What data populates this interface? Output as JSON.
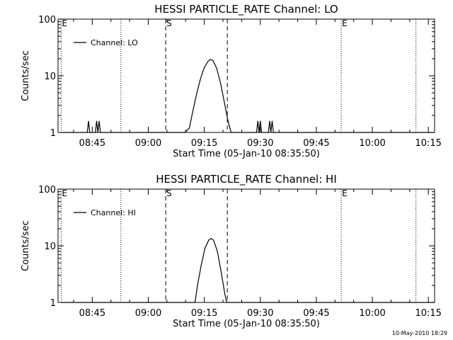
{
  "chart_data": [
    {
      "type": "line",
      "title": "HESSI PARTICLE_RATE Channel: LO",
      "xlabel": "Start Time (05-Jan-10 08:35:50)",
      "ylabel": "Counts/sec",
      "yscale": "log",
      "ylim": [
        1,
        100
      ],
      "y_ticks": [
        {
          "value": 1,
          "label": "1"
        },
        {
          "value": 10,
          "label": "10"
        },
        {
          "value": 100,
          "label": "100"
        }
      ],
      "x_ticks": [
        {
          "value": "08:45",
          "label": "08:45"
        },
        {
          "value": "09:00",
          "label": "09:00"
        },
        {
          "value": "09:15",
          "label": "09:15"
        },
        {
          "value": "09:30",
          "label": "09:30"
        },
        {
          "value": "09:45",
          "label": "09:45"
        },
        {
          "value": "10:00",
          "label": "10:00"
        },
        {
          "value": "10:15",
          "label": "10:15"
        }
      ],
      "xlim": [
        "08:35:50",
        "10:16:40"
      ],
      "series": [
        {
          "name": "Channel: LO",
          "points": [
            [
              "08:36:40",
              1.0
            ],
            [
              "08:43:40",
              1.0
            ],
            [
              "08:44:00",
              1.6
            ],
            [
              "08:44:20",
              1.0
            ],
            [
              "08:45:50",
              1.0
            ],
            [
              "08:46:10",
              1.6
            ],
            [
              "08:46:30",
              1.0
            ],
            [
              "08:46:50",
              1.6
            ],
            [
              "08:47:10",
              1.0
            ],
            [
              "09:09:50",
              1.0
            ],
            [
              "09:11:00",
              1.2
            ],
            [
              "09:12:00",
              2.5
            ],
            [
              "09:13:00",
              5.0
            ],
            [
              "09:14:00",
              9.0
            ],
            [
              "09:15:00",
              14.0
            ],
            [
              "09:16:00",
              18.0
            ],
            [
              "09:16:40",
              19.5
            ],
            [
              "09:17:20",
              18.5
            ],
            [
              "09:18:20",
              13.5
            ],
            [
              "09:19:20",
              7.5
            ],
            [
              "09:20:20",
              3.5
            ],
            [
              "09:21:20",
              1.6
            ],
            [
              "09:22:10",
              1.0
            ],
            [
              "09:29:00",
              1.0
            ],
            [
              "09:29:20",
              1.6
            ],
            [
              "09:29:40",
              1.0
            ],
            [
              "09:30:00",
              1.6
            ],
            [
              "09:30:20",
              1.0
            ],
            [
              "09:32:10",
              1.0
            ],
            [
              "09:32:30",
              1.6
            ],
            [
              "09:32:50",
              1.0
            ],
            [
              "09:33:10",
              1.6
            ],
            [
              "09:33:30",
              1.0
            ],
            [
              "10:16:40",
              1.0
            ]
          ]
        }
      ],
      "markers": [
        {
          "time": "08:36:40",
          "style": "dotted",
          "label": "E"
        },
        {
          "time": "08:52:40",
          "style": "dotted",
          "label": ""
        },
        {
          "time": "09:04:40",
          "style": "dashed",
          "label": "S"
        },
        {
          "time": "09:21:10",
          "style": "dashed",
          "label": ""
        },
        {
          "time": "09:51:40",
          "style": "dotted",
          "label": "E"
        },
        {
          "time": "10:11:40",
          "style": "dotted",
          "label": ""
        }
      ],
      "legend": {
        "label": "Channel: LO",
        "position": "top-left"
      }
    },
    {
      "type": "line",
      "title": "HESSI PARTICLE_RATE Channel: HI",
      "xlabel": "Start Time (05-Jan-10 08:35:50)",
      "ylabel": "Counts/sec",
      "yscale": "log",
      "ylim": [
        1,
        100
      ],
      "y_ticks": [
        {
          "value": 1,
          "label": "1"
        },
        {
          "value": 10,
          "label": "10"
        },
        {
          "value": 100,
          "label": "100"
        }
      ],
      "x_ticks": [
        {
          "value": "08:45",
          "label": "08:45"
        },
        {
          "value": "09:00",
          "label": "09:00"
        },
        {
          "value": "09:15",
          "label": "09:15"
        },
        {
          "value": "09:30",
          "label": "09:30"
        },
        {
          "value": "09:45",
          "label": "09:45"
        },
        {
          "value": "10:00",
          "label": "10:00"
        },
        {
          "value": "10:15",
          "label": "10:15"
        }
      ],
      "xlim": [
        "08:35:50",
        "10:16:40"
      ],
      "series": [
        {
          "name": "Channel: HI",
          "points": [
            [
              "08:36:40",
              1.0
            ],
            [
              "09:12:30",
              1.0
            ],
            [
              "09:13:10",
              2.0
            ],
            [
              "09:14:10",
              4.5
            ],
            [
              "09:15:10",
              9.0
            ],
            [
              "09:16:10",
              12.5
            ],
            [
              "09:16:50",
              13.5
            ],
            [
              "09:17:30",
              12.5
            ],
            [
              "09:18:30",
              8.0
            ],
            [
              "09:19:30",
              3.5
            ],
            [
              "09:20:30",
              1.4
            ],
            [
              "09:21:00",
              1.0
            ],
            [
              "10:16:40",
              1.0
            ]
          ]
        }
      ],
      "markers": [
        {
          "time": "08:36:40",
          "style": "dotted",
          "label": "E"
        },
        {
          "time": "08:52:40",
          "style": "dotted",
          "label": ""
        },
        {
          "time": "09:04:40",
          "style": "dashed",
          "label": "S"
        },
        {
          "time": "09:21:10",
          "style": "dashed",
          "label": ""
        },
        {
          "time": "09:51:40",
          "style": "dotted",
          "label": "E"
        },
        {
          "time": "10:11:40",
          "style": "dotted",
          "label": ""
        }
      ],
      "legend": {
        "label": "Channel: HI",
        "position": "top-left"
      }
    }
  ],
  "footer": {
    "timestamp": "10-May-2010 18:29"
  }
}
